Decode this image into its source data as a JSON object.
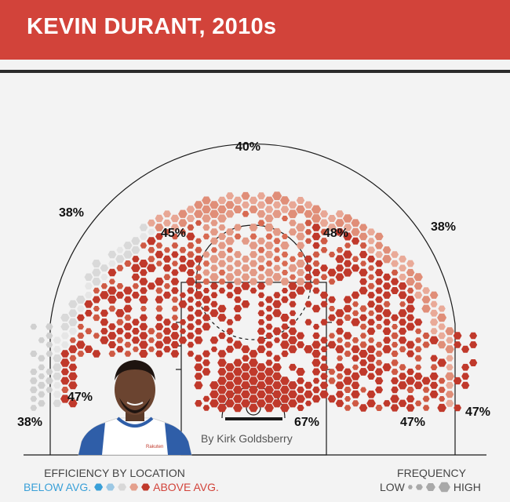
{
  "header": {
    "title": "KEVIN DURANT, 2010s"
  },
  "credit": "By Kirk Goldsberry",
  "colors": {
    "header_bg": "#d2433a",
    "below_avg_dark": "#3aa0d8",
    "below_avg_light": "#bcdcee",
    "average": "#d8d8d8",
    "above_avg_light": "#e4a08d",
    "above_avg_dark": "#c0392b"
  },
  "chart_data": {
    "type": "heatmap",
    "title": "KEVIN DURANT, 2010s",
    "description_labels": {
      "color": "efficiency by location (field goal percentage)",
      "size": "shot frequency"
    },
    "zones": [
      {
        "name": "above-break-3-top",
        "label": "40%"
      },
      {
        "name": "above-break-3-left-wing",
        "label": "38%"
      },
      {
        "name": "above-break-3-right-wing",
        "label": "38%"
      },
      {
        "name": "midrange-left-elbow",
        "label": "45%"
      },
      {
        "name": "midrange-right-elbow",
        "label": "48%"
      },
      {
        "name": "midrange-left-baseline",
        "label": "47%"
      },
      {
        "name": "midrange-right-baseline",
        "label": "47%"
      },
      {
        "name": "corner-3-left",
        "label": "38%"
      },
      {
        "name": "corner-3-right",
        "label": "47%"
      },
      {
        "name": "restricted-area",
        "label": "67%"
      }
    ]
  },
  "legend": {
    "efficiency_title": "EFFICIENCY BY LOCATION",
    "below_label": "BELOW AVG.",
    "above_label": "ABOVE AVG.",
    "frequency_title": "FREQUENCY",
    "low_label": "LOW",
    "high_label": "HIGH"
  },
  "icons": {
    "player_photo": "player-photo-icon"
  }
}
